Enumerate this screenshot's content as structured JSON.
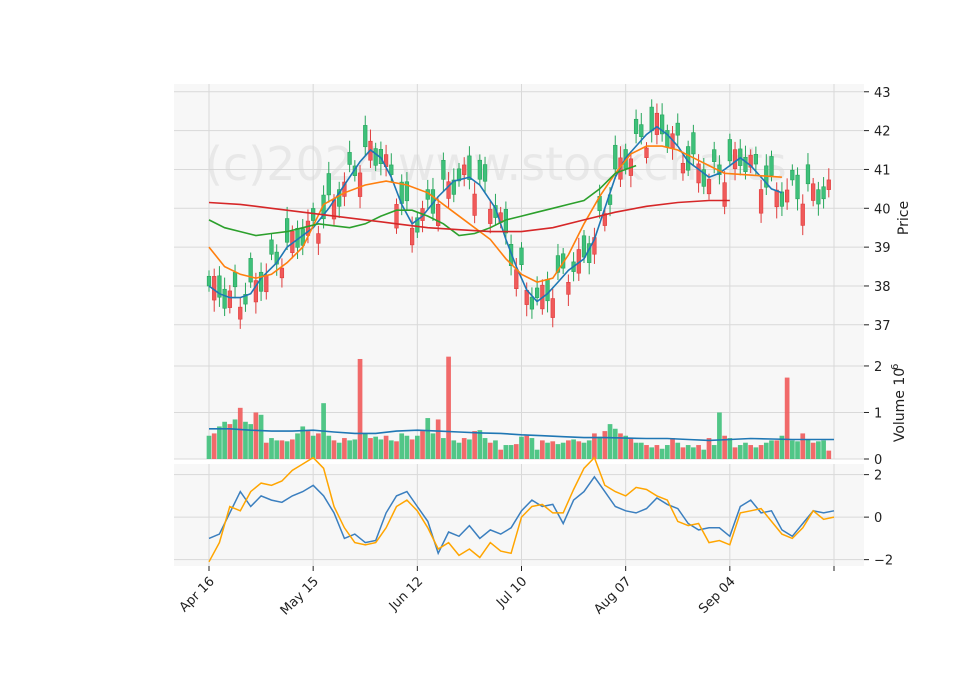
{
  "watermark": "(c)2024 www.stockcharts",
  "colors": {
    "up": "#26a65b",
    "up_fill": "#3ec07a",
    "down": "#e03c3c",
    "down_fill": "#f05a5a",
    "ma_short": "#1f77b4",
    "ma_mid": "#ff7f0e",
    "ma_long": "#2ca02c",
    "ma_longest": "#d62728",
    "vol_ma": "#1f77b4",
    "osc_1": "#3b7fbf",
    "osc_2": "#ffa500",
    "panel_bg": "#f7f7f7",
    "grid": "#d9d9d9"
  },
  "chart_data": [
    {
      "type": "candlestick",
      "panel": "price",
      "ylabel": "Price",
      "ylim": [
        36.3,
        43.2
      ],
      "yticks": [
        37,
        38,
        39,
        40,
        41,
        42,
        43
      ],
      "grid": true,
      "x_tick_labels": [
        "Apr 16",
        "May 15",
        "Jun 12",
        "Jul 10",
        "Aug 07",
        "Sep 04",
        ""
      ],
      "x_tick_index": [
        0,
        20,
        40,
        60,
        80,
        100,
        120
      ],
      "series": [
        {
          "name": "",
          "values": [
            38.0,
            37.8,
            37.7,
            37.7,
            37.8,
            38.2,
            38.6,
            39.0,
            39.2,
            39.5,
            40.0,
            40.6,
            41.2,
            41.5,
            41.3,
            40.8,
            40.1,
            39.6,
            39.8,
            40.3,
            40.7,
            40.8,
            40.6,
            40.0,
            39.2,
            38.5,
            37.9,
            37.6,
            37.8,
            38.1,
            38.4,
            38.7,
            39.2,
            40.0,
            40.8,
            41.3,
            41.6,
            41.9,
            42.1,
            41.9,
            41.6,
            41.2,
            41.0,
            40.8,
            40.9,
            41.1,
            41.3,
            41.1,
            40.8,
            40.5,
            40.4
          ],
          "x": [
            0,
            2,
            4,
            6,
            8,
            10,
            13,
            15,
            17,
            20,
            23,
            26,
            29,
            31,
            33,
            35,
            37,
            39,
            41,
            44,
            47,
            50,
            52,
            55,
            57,
            59,
            61,
            63,
            65,
            67,
            69,
            72,
            74,
            76,
            78,
            80,
            82,
            84,
            86,
            88,
            90,
            92,
            94,
            96,
            98,
            100,
            102,
            104,
            106,
            108,
            110
          ]
        },
        {
          "name": "",
          "values": [
            39.0,
            38.5,
            38.3,
            38.2,
            38.3,
            38.6,
            39.0,
            40.1,
            40.4,
            40.6,
            40.7,
            40.6,
            40.4,
            40.0,
            39.6,
            39.2,
            38.7,
            38.3,
            38.1,
            38.2,
            38.8,
            39.6,
            40.3,
            40.9,
            41.4,
            41.6,
            41.6,
            41.5,
            41.3,
            41.1,
            40.9,
            40.8
          ],
          "x": [
            0,
            3,
            6,
            9,
            12,
            15,
            18,
            22,
            26,
            30,
            34,
            38,
            42,
            46,
            50,
            54,
            57,
            60,
            63,
            66,
            69,
            72,
            75,
            78,
            81,
            84,
            87,
            90,
            93,
            96,
            99,
            110
          ]
        },
        {
          "name": "",
          "values": [
            39.7,
            39.5,
            39.4,
            39.3,
            39.35,
            39.4,
            39.5,
            39.6,
            39.55,
            39.5,
            39.6,
            39.8,
            39.95,
            39.95,
            39.8,
            39.6,
            39.3,
            39.35,
            39.5,
            39.7,
            39.8,
            39.9,
            40.0,
            40.1,
            40.2,
            40.5,
            40.9,
            41.0,
            41.1
          ],
          "x": [
            0,
            3,
            6,
            9,
            12,
            15,
            18,
            21,
            24,
            27,
            30,
            33,
            36,
            39,
            42,
            45,
            48,
            51,
            54,
            57,
            60,
            63,
            66,
            69,
            72,
            75,
            78,
            80,
            82
          ]
        },
        {
          "name": "",
          "values": [
            40.15,
            40.1,
            40.0,
            39.9,
            39.8,
            39.7,
            39.6,
            39.5,
            39.45,
            39.4,
            39.4,
            39.5,
            39.7,
            39.9,
            40.05,
            40.15,
            40.2,
            40.2
          ],
          "x": [
            0,
            6,
            12,
            18,
            24,
            30,
            36,
            42,
            48,
            54,
            60,
            66,
            72,
            78,
            84,
            90,
            96,
            100
          ]
        }
      ]
    },
    {
      "type": "bar",
      "panel": "volume",
      "ylabel": "Volume  10",
      "ylabel_exp": "6",
      "ylim": [
        0,
        2.3
      ],
      "yticks": [
        0,
        1,
        2
      ],
      "grid": true,
      "values": [
        0.5,
        0.55,
        0.7,
        0.8,
        0.75,
        0.85,
        1.1,
        0.8,
        0.75,
        1.0,
        0.95,
        0.35,
        0.45,
        0.4,
        0.4,
        0.38,
        0.42,
        0.55,
        0.7,
        0.6,
        0.5,
        0.55,
        1.2,
        0.5,
        0.4,
        0.35,
        0.45,
        0.4,
        0.42,
        2.15,
        0.55,
        0.45,
        0.48,
        0.42,
        0.5,
        0.4,
        0.38,
        0.55,
        0.5,
        0.42,
        0.5,
        0.6,
        0.88,
        0.55,
        0.85,
        0.45,
        2.2,
        0.4,
        0.35,
        0.45,
        0.42,
        0.6,
        0.62,
        0.45,
        0.35,
        0.4,
        0.2,
        0.3,
        0.3,
        0.32,
        0.48,
        0.5,
        0.45,
        0.2,
        0.4,
        0.35,
        0.38,
        0.32,
        0.35,
        0.4,
        0.42,
        0.38,
        0.35,
        0.4,
        0.55,
        0.48,
        0.6,
        0.75,
        0.65,
        0.55,
        0.5,
        0.45,
        0.35,
        0.35,
        0.3,
        0.25,
        0.3,
        0.22,
        0.3,
        0.45,
        0.35,
        0.25,
        0.3,
        0.25,
        0.3,
        0.2,
        0.45,
        0.3,
        1.0,
        0.5,
        0.45,
        0.25,
        0.3,
        0.35,
        0.3,
        0.25,
        0.3,
        0.35,
        0.4,
        0.4,
        0.5,
        1.75,
        0.4,
        0.38,
        0.55,
        0.42,
        0.35,
        0.38,
        0.4,
        0.18
      ],
      "ma_values": [
        0.65,
        0.65,
        0.62,
        0.6,
        0.6,
        0.62,
        0.58,
        0.55,
        0.55,
        0.6,
        0.62,
        0.6,
        0.58,
        0.56,
        0.55,
        0.52,
        0.5,
        0.48,
        0.46,
        0.46,
        0.45,
        0.44,
        0.44,
        0.42,
        0.4,
        0.42,
        0.44,
        0.43,
        0.42,
        0.42,
        0.42
      ],
      "ma_x": [
        0,
        4,
        8,
        12,
        16,
        20,
        24,
        28,
        32,
        36,
        40,
        44,
        48,
        52,
        56,
        60,
        64,
        68,
        72,
        76,
        80,
        84,
        88,
        92,
        96,
        100,
        104,
        108,
        112,
        116,
        120
      ]
    },
    {
      "type": "line",
      "panel": "oscillator",
      "ylim": [
        -2.3,
        2.5
      ],
      "yticks": [
        -2,
        0,
        2
      ],
      "grid": true,
      "series": [
        {
          "name": "",
          "x": [
            0,
            2,
            4,
            6,
            8,
            10,
            12,
            14,
            16,
            18,
            20,
            22,
            24,
            26,
            28,
            30,
            32,
            34,
            36,
            38,
            40,
            42,
            44,
            46,
            48,
            50,
            52,
            54,
            56,
            58,
            60,
            62,
            64,
            66,
            68,
            70,
            72,
            74,
            76,
            78,
            80,
            82,
            84,
            86,
            88,
            90,
            92,
            94,
            96,
            98,
            100,
            102,
            104,
            106,
            108,
            110,
            112,
            114,
            116,
            118,
            120
          ],
          "values": [
            -1.0,
            -0.8,
            0.2,
            1.2,
            0.5,
            1.0,
            0.8,
            0.7,
            1.0,
            1.2,
            1.5,
            1.0,
            0.2,
            -1.0,
            -0.8,
            -1.2,
            -1.1,
            0.2,
            1.0,
            1.2,
            0.5,
            -0.2,
            -1.7,
            -0.7,
            -0.9,
            -0.4,
            -1.0,
            -0.6,
            -0.8,
            -0.5,
            0.3,
            0.8,
            0.5,
            0.6,
            -0.3,
            0.8,
            1.2,
            1.9,
            1.2,
            0.5,
            0.3,
            0.2,
            0.4,
            0.9,
            0.6,
            0.4,
            -0.3,
            -0.6,
            -0.5,
            -0.5,
            -0.9,
            0.5,
            0.8,
            0.2,
            0.3,
            -0.6,
            -0.9,
            -0.3,
            0.3,
            0.2,
            0.3
          ]
        },
        {
          "name": "",
          "x": [
            0,
            2,
            4,
            6,
            8,
            10,
            12,
            14,
            16,
            18,
            20,
            22,
            24,
            26,
            28,
            30,
            32,
            34,
            36,
            38,
            40,
            42,
            44,
            46,
            48,
            50,
            52,
            54,
            56,
            58,
            60,
            62,
            64,
            66,
            68,
            70,
            72,
            74,
            76,
            78,
            80,
            82,
            84,
            86,
            88,
            90,
            92,
            94,
            96,
            98,
            100,
            102,
            104,
            106,
            108,
            110,
            112,
            114,
            116,
            118,
            120
          ],
          "values": [
            -2.1,
            -1.2,
            0.5,
            0.3,
            1.2,
            1.6,
            1.5,
            1.7,
            2.2,
            2.5,
            2.8,
            2.3,
            0.5,
            -0.5,
            -1.2,
            -1.3,
            -1.2,
            -0.5,
            0.5,
            0.8,
            0.3,
            -0.5,
            -1.5,
            -1.2,
            -1.8,
            -1.5,
            -1.9,
            -1.2,
            -1.6,
            -1.7,
            0.0,
            0.5,
            0.6,
            0.2,
            0.2,
            1.3,
            2.3,
            2.8,
            1.5,
            1.2,
            1.0,
            1.4,
            1.3,
            1.0,
            0.8,
            -0.2,
            -0.4,
            -0.3,
            -1.2,
            -1.1,
            -1.3,
            0.2,
            0.3,
            0.4,
            -0.2,
            -0.8,
            -1.0,
            -0.5,
            0.3,
            -0.1,
            0.0
          ]
        }
      ]
    }
  ]
}
